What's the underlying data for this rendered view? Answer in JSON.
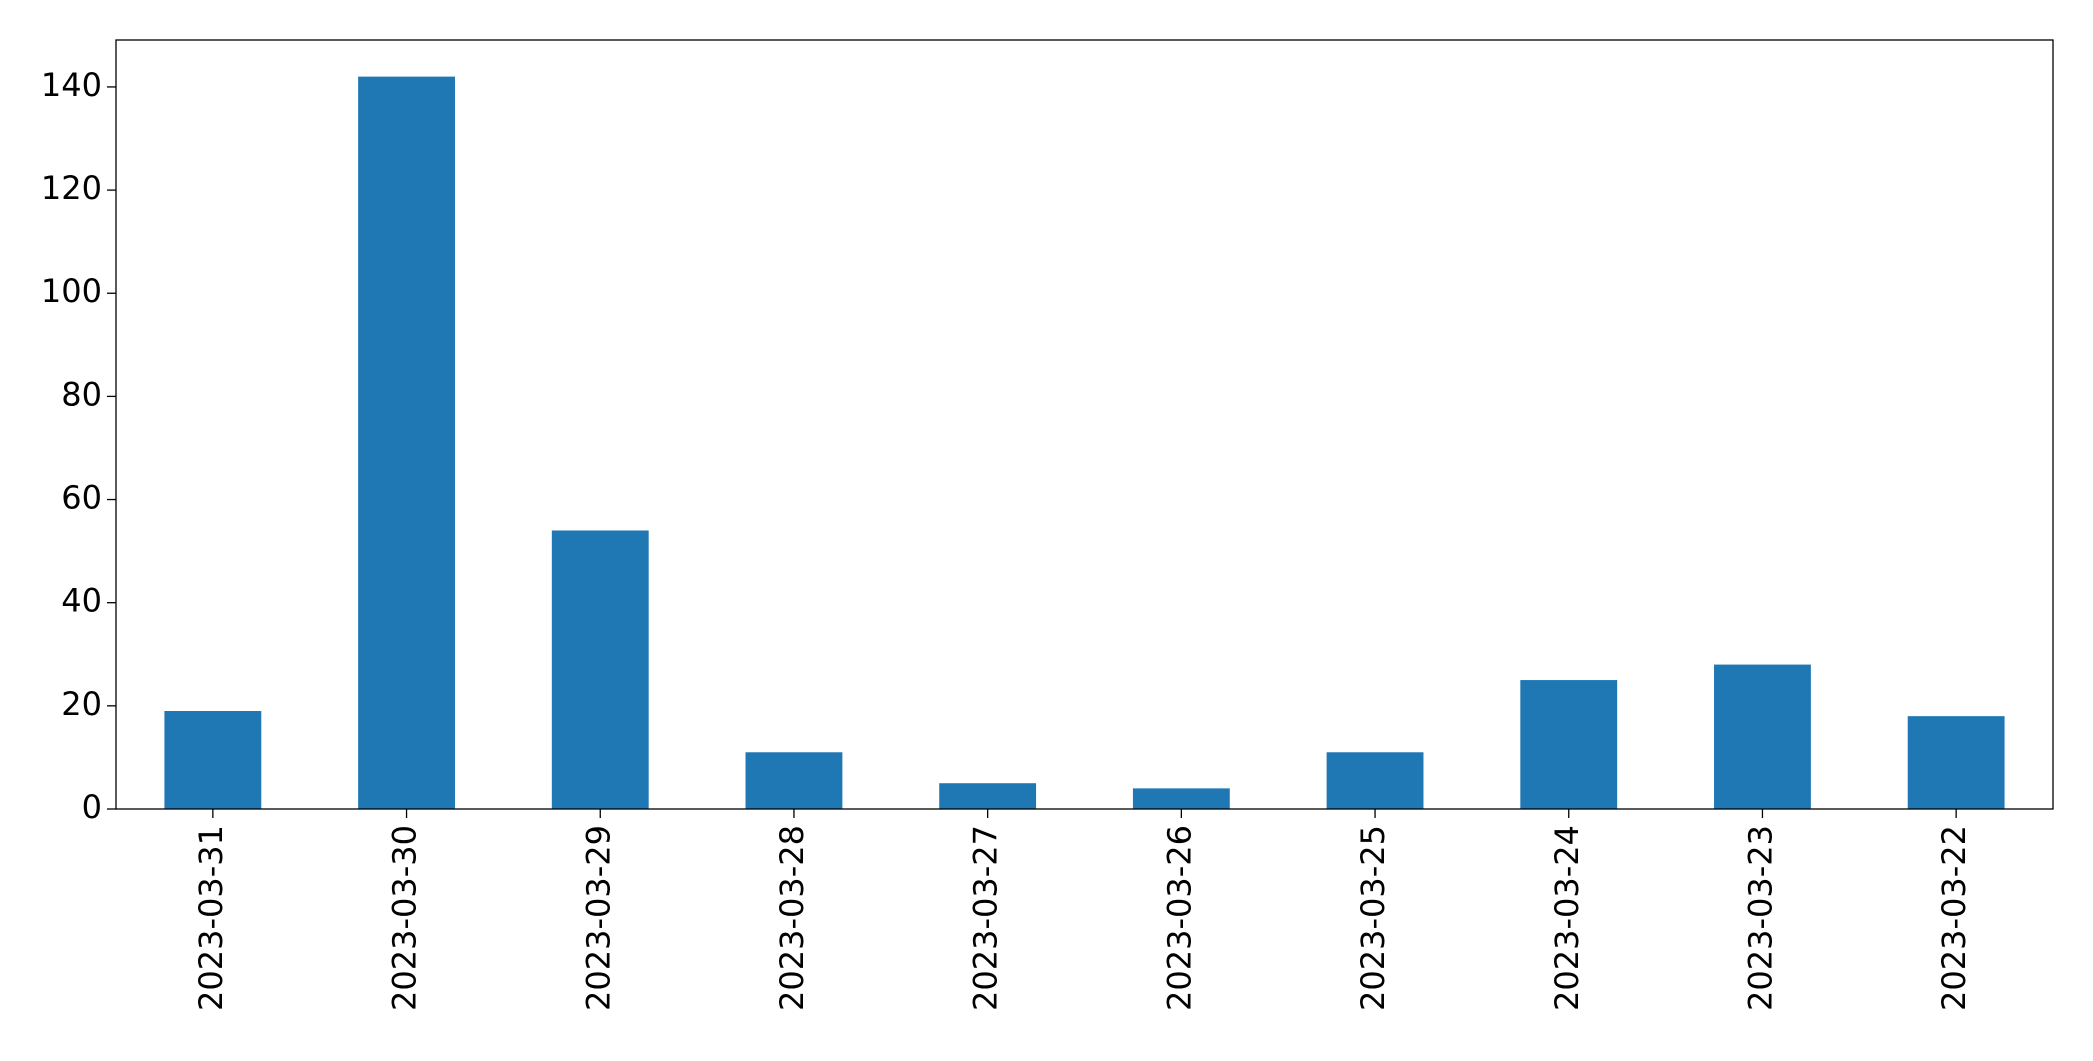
{
  "chart_data": {
    "type": "bar",
    "categories": [
      "2023-03-31",
      "2023-03-30",
      "2023-03-29",
      "2023-03-28",
      "2023-03-27",
      "2023-03-26",
      "2023-03-25",
      "2023-03-24",
      "2023-03-23",
      "2023-03-22"
    ],
    "values": [
      19,
      142,
      54,
      11,
      5,
      4,
      11,
      25,
      28,
      18
    ],
    "color": "#1f77b4",
    "ylim": [
      0,
      149.1
    ],
    "yticks": [
      0,
      20,
      40,
      60,
      80,
      100,
      120,
      140
    ],
    "grid": false
  }
}
